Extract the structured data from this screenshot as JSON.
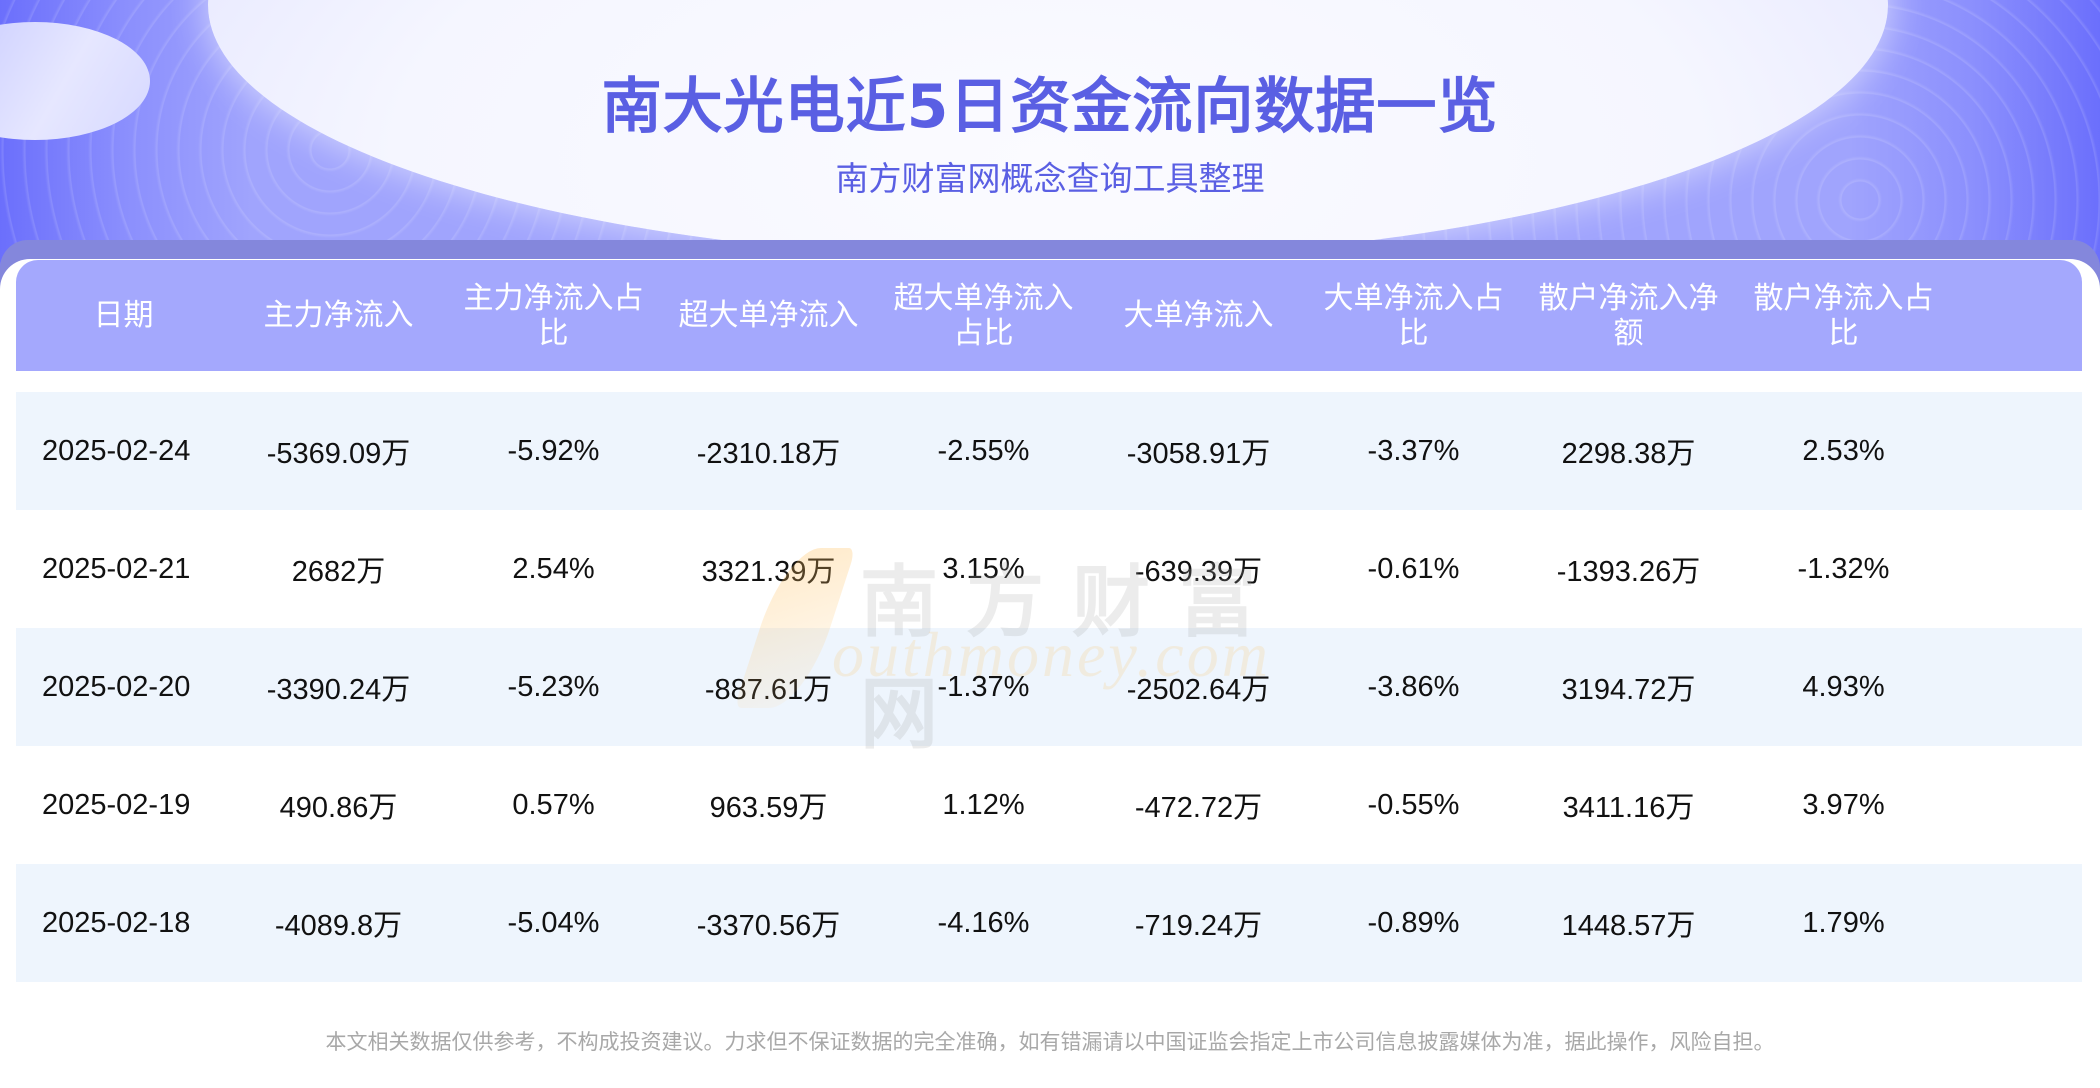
{
  "header": {
    "title": "南大光电近5日资金流向数据一览",
    "subtitle": "南方财富网概念查询工具整理"
  },
  "table": {
    "columns": [
      "日期",
      "主力净流入",
      "主力净流入占比",
      "超大单净流入",
      "超大单净流入占比",
      "大单净流入",
      "大单净流入占比",
      "散户净流入净额",
      "散户净流入占比"
    ],
    "rows": [
      [
        "2025-02-24",
        "-5369.09万",
        "-5.92%",
        "-2310.18万",
        "-2.55%",
        "-3058.91万",
        "-3.37%",
        "2298.38万",
        "2.53%"
      ],
      [
        "2025-02-21",
        "2682万",
        "2.54%",
        "3321.39万",
        "3.15%",
        "-639.39万",
        "-0.61%",
        "-1393.26万",
        "-1.32%"
      ],
      [
        "2025-02-20",
        "-3390.24万",
        "-5.23%",
        "-887.61万",
        "-1.37%",
        "-2502.64万",
        "-3.86%",
        "3194.72万",
        "4.93%"
      ],
      [
        "2025-02-19",
        "490.86万",
        "0.57%",
        "963.59万",
        "1.12%",
        "-472.72万",
        "-0.55%",
        "3411.16万",
        "3.97%"
      ],
      [
        "2025-02-18",
        "-4089.8万",
        "-5.04%",
        "-3370.56万",
        "-4.16%",
        "-719.24万",
        "-0.89%",
        "1448.57万",
        "1.79%"
      ]
    ]
  },
  "watermark": {
    "cn": "南方财富网",
    "en": "outhmoney.com"
  },
  "footer": {
    "disclaimer": "本文相关数据仅供参考，不构成投资建议。力求但不保证数据的完全准确，如有错漏请以中国证监会指定上市公司信息披露媒体为准，据此操作，风险自担。"
  },
  "colors": {
    "brand": "#5a5fe3",
    "header_band": "#a4a8fd",
    "header_shadow": "#8487dc",
    "row_alt": "#eef5fd",
    "disclaimer": "#a8a8a8"
  }
}
